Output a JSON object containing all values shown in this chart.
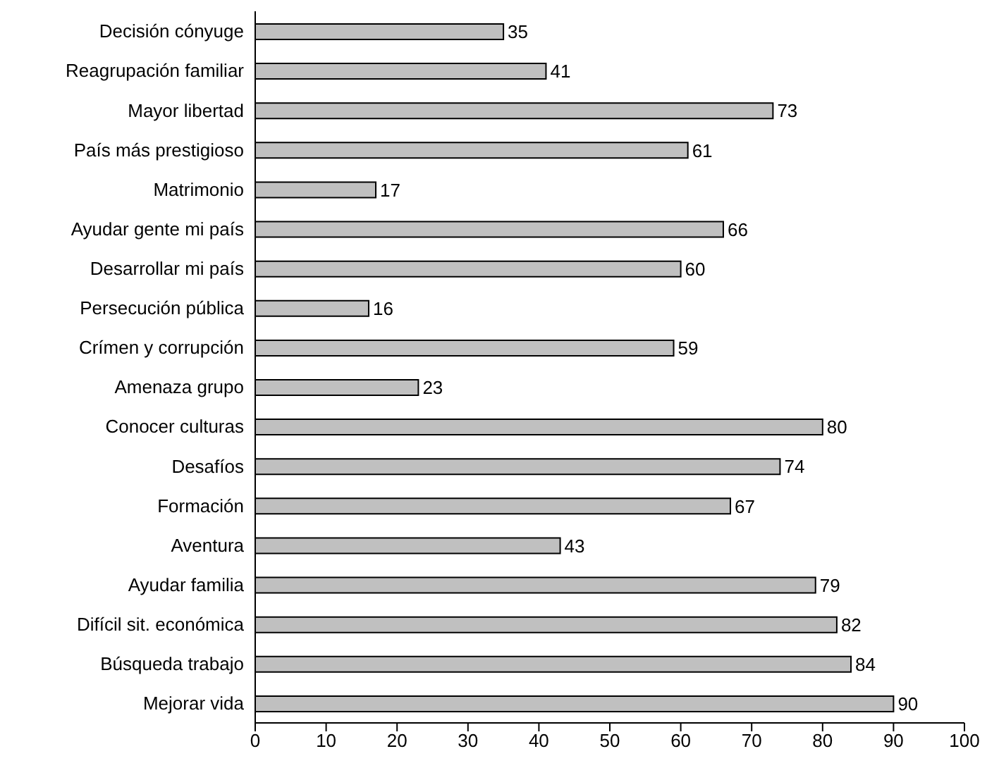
{
  "chart_data": {
    "type": "bar",
    "orientation": "horizontal",
    "categories": [
      "Decisión cónyuge",
      "Reagrupación familiar",
      "Mayor libertad",
      "País más prestigioso",
      "Matrimonio",
      "Ayudar gente mi país",
      "Desarrollar mi país",
      "Persecución pública",
      "Crímen y corrupción",
      "Amenaza grupo",
      "Conocer culturas",
      "Desafíos",
      "Formación",
      "Aventura",
      "Ayudar familia",
      "Difícil sit. económica",
      "Búsqueda trabajo",
      "Mejorar vida"
    ],
    "values": [
      35,
      41,
      73,
      61,
      17,
      66,
      60,
      16,
      59,
      23,
      80,
      74,
      67,
      43,
      79,
      82,
      84,
      90
    ],
    "color": "#c0c0c0",
    "xlim": [
      0,
      100
    ],
    "xticks": [
      0,
      10,
      20,
      30,
      40,
      50,
      60,
      70,
      80,
      90,
      100
    ],
    "data_labels": true,
    "grid": false,
    "legend": false
  }
}
